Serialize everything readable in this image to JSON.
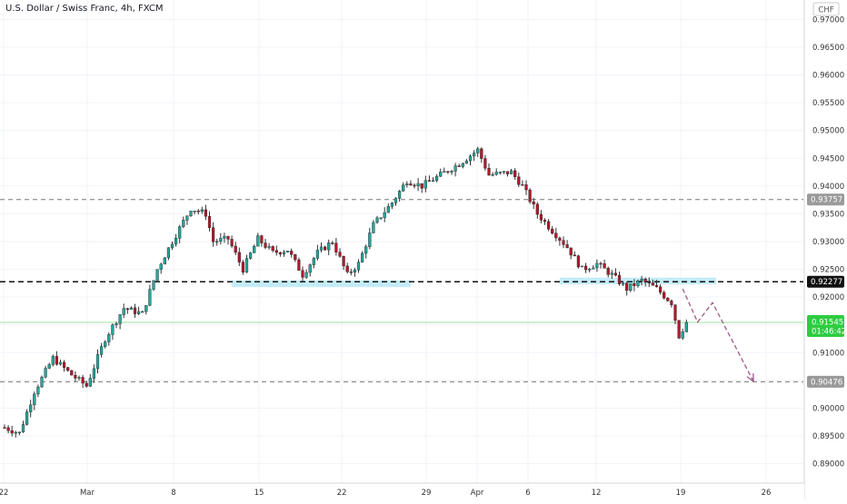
{
  "header": {
    "title": "U.S. Dollar / Swiss Franc, 4h, FXCM"
  },
  "price_axis": {
    "currency": "CHF"
  },
  "colors": {
    "bull": "#26a69a",
    "bear": "#b2182b",
    "wick": "#333333",
    "grid": "#f0f3fa",
    "zone": "#b9e9f7",
    "projection": "#9c5b8a",
    "last_price_bg": "#2ecc40"
  },
  "chart_data": {
    "type": "candlestick",
    "title": "U.S. Dollar / Swiss Franc, 4h, FXCM",
    "ylim": [
      0.8865,
      0.9735
    ],
    "y_ticks": [
      "0.97000",
      "0.96500",
      "0.96000",
      "0.95500",
      "0.95000",
      "0.94500",
      "0.94000",
      "0.93500",
      "0.93000",
      "0.92500",
      "0.92000",
      "0.91500",
      "0.91000",
      "0.90500",
      "0.90000",
      "0.89500",
      "0.89000"
    ],
    "x_ticks": [
      "22",
      "Mar",
      "8",
      "15",
      "22",
      "29",
      "Apr",
      "6",
      "12",
      "19",
      "26"
    ],
    "anchors": [
      {
        "i": 0,
        "p": 0.8965
      },
      {
        "i": 4,
        "p": 0.8955
      },
      {
        "i": 8,
        "p": 0.903
      },
      {
        "i": 13,
        "p": 0.909
      },
      {
        "i": 18,
        "p": 0.906
      },
      {
        "i": 22,
        "p": 0.904
      },
      {
        "i": 27,
        "p": 0.9125
      },
      {
        "i": 32,
        "p": 0.918
      },
      {
        "i": 37,
        "p": 0.917
      },
      {
        "i": 41,
        "p": 0.925
      },
      {
        "i": 45,
        "p": 0.93
      },
      {
        "i": 50,
        "p": 0.936
      },
      {
        "i": 54,
        "p": 0.935
      },
      {
        "i": 56,
        "p": 0.93
      },
      {
        "i": 60,
        "p": 0.9305
      },
      {
        "i": 64,
        "p": 0.925
      },
      {
        "i": 68,
        "p": 0.9305
      },
      {
        "i": 72,
        "p": 0.928
      },
      {
        "i": 76,
        "p": 0.9285
      },
      {
        "i": 80,
        "p": 0.924
      },
      {
        "i": 84,
        "p": 0.928
      },
      {
        "i": 88,
        "p": 0.93
      },
      {
        "i": 92,
        "p": 0.924
      },
      {
        "i": 95,
        "p": 0.926
      },
      {
        "i": 99,
        "p": 0.933
      },
      {
        "i": 104,
        "p": 0.937
      },
      {
        "i": 108,
        "p": 0.941
      },
      {
        "i": 112,
        "p": 0.94
      },
      {
        "i": 117,
        "p": 0.942
      },
      {
        "i": 122,
        "p": 0.944
      },
      {
        "i": 127,
        "p": 0.9465
      },
      {
        "i": 130,
        "p": 0.942
      },
      {
        "i": 136,
        "p": 0.9425
      },
      {
        "i": 139,
        "p": 0.94
      },
      {
        "i": 143,
        "p": 0.935
      },
      {
        "i": 147,
        "p": 0.932
      },
      {
        "i": 151,
        "p": 0.929
      },
      {
        "i": 155,
        "p": 0.925
      },
      {
        "i": 159,
        "p": 0.926
      },
      {
        "i": 163,
        "p": 0.924
      },
      {
        "i": 167,
        "p": 0.9215
      },
      {
        "i": 171,
        "p": 0.923
      },
      {
        "i": 175,
        "p": 0.9215
      },
      {
        "i": 179,
        "p": 0.919
      },
      {
        "i": 181,
        "p": 0.913
      },
      {
        "i": 183,
        "p": 0.91545
      }
    ],
    "horizontal_levels": [
      {
        "price": 0.93757,
        "label": "0.93757",
        "style": "dashed-gray"
      },
      {
        "price": 0.92277,
        "label": "0.92277",
        "style": "dashed-black"
      },
      {
        "price": 0.90476,
        "label": "0.90476",
        "style": "dashed-gray"
      }
    ],
    "zones": [
      {
        "from_i": 61,
        "to_i": 109,
        "price_top": 0.923,
        "price_bottom": 0.9218
      },
      {
        "from_i": 149,
        "to_i": 191,
        "price_top": 0.9235,
        "price_bottom": 0.9223
      }
    ],
    "projection_path": [
      {
        "i": 182,
        "p": 0.9215
      },
      {
        "i": 186,
        "p": 0.9155
      },
      {
        "i": 190,
        "p": 0.919
      },
      {
        "i": 201,
        "p": 0.9048
      }
    ],
    "last_price": {
      "value": "0.91545",
      "countdown": "01:46:42",
      "price": 0.91545
    }
  }
}
